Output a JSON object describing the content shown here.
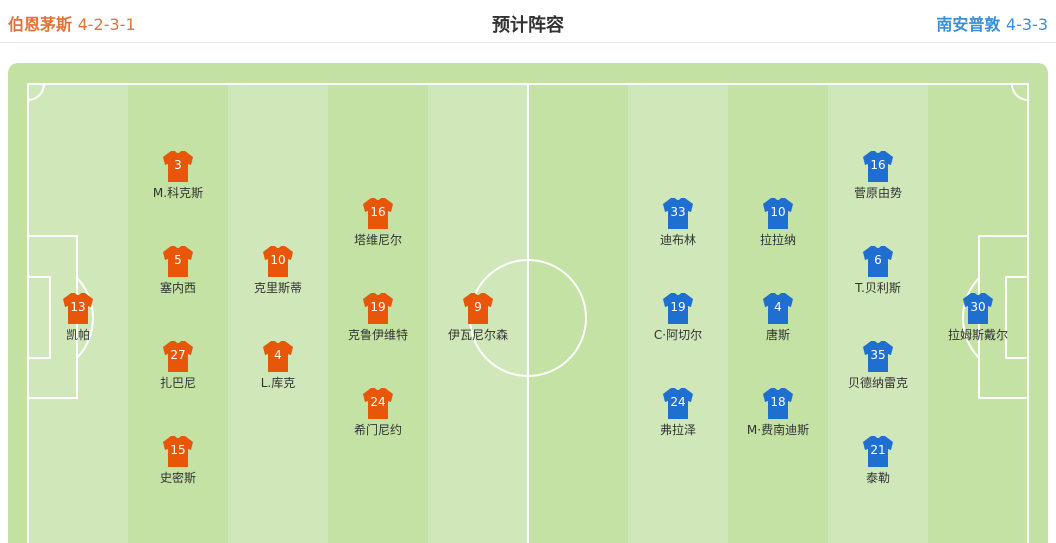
{
  "header": {
    "title": "预计阵容",
    "home": {
      "name": "伯恩茅斯",
      "formation": "4-2-3-1"
    },
    "away": {
      "name": "南安普敦",
      "formation": "4-3-3"
    }
  },
  "colors": {
    "home_shirt": "#e8560a",
    "away_shirt": "#1f6fd0",
    "home_text": "#e0733a",
    "away_text": "#3a8fd6"
  },
  "home_players": [
    {
      "number": "13",
      "name": "凯帕"
    },
    {
      "number": "3",
      "name": "M.科克斯"
    },
    {
      "number": "5",
      "name": "塞内西"
    },
    {
      "number": "27",
      "name": "扎巴尼"
    },
    {
      "number": "15",
      "name": "史密斯"
    },
    {
      "number": "10",
      "name": "克里斯蒂"
    },
    {
      "number": "4",
      "name": "L.库克"
    },
    {
      "number": "16",
      "name": "塔维尼尔"
    },
    {
      "number": "19",
      "name": "克鲁伊维特"
    },
    {
      "number": "24",
      "name": "希门尼约"
    },
    {
      "number": "9",
      "name": "伊瓦尼尔森"
    }
  ],
  "away_players": [
    {
      "number": "30",
      "name": "拉姆斯戴尔"
    },
    {
      "number": "16",
      "name": "菅原由势"
    },
    {
      "number": "6",
      "name": "T.贝利斯"
    },
    {
      "number": "35",
      "name": "贝德纳雷克"
    },
    {
      "number": "21",
      "name": "泰勒"
    },
    {
      "number": "10",
      "name": "拉拉纳"
    },
    {
      "number": "4",
      "name": "唐斯"
    },
    {
      "number": "18",
      "name": "M·费南迪斯"
    },
    {
      "number": "33",
      "name": "迪布林"
    },
    {
      "number": "19",
      "name": "C·阿切尔"
    },
    {
      "number": "24",
      "name": "弗拉泽"
    }
  ]
}
